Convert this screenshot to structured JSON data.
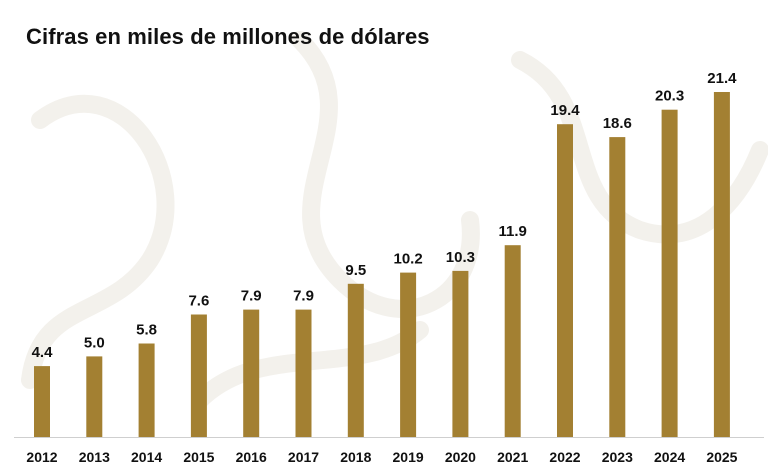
{
  "title": "Cifras en miles de millones de dólares",
  "colors": {
    "bar": "#A38032",
    "text": "#111111",
    "axis": "#cfcfcf",
    "background": "#ffffff"
  },
  "chart_data": {
    "type": "bar",
    "title": "Cifras en miles de millones de dólares",
    "xlabel": "",
    "ylabel": "",
    "categories": [
      "2012",
      "2013",
      "2014",
      "2015",
      "2016",
      "2017",
      "2018",
      "2019",
      "2020",
      "2021",
      "2022",
      "2023",
      "2024",
      "2025"
    ],
    "values": [
      4.4,
      5.0,
      5.8,
      7.6,
      7.9,
      7.9,
      9.5,
      10.2,
      10.3,
      11.9,
      19.4,
      18.6,
      20.3,
      21.4
    ],
    "value_labels": [
      "4.4",
      "5.0",
      "5.8",
      "7.6",
      "7.9",
      "7.9",
      "9.5",
      "10.2",
      "10.3",
      "11.9",
      "19.4",
      "18.6",
      "20.3",
      "21.4"
    ],
    "ylim": [
      0,
      21.4
    ],
    "grid": false,
    "legend": "none",
    "data_labels": true
  }
}
